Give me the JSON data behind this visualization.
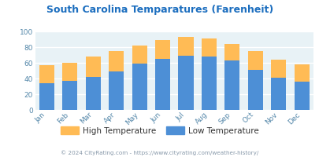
{
  "title": "South Carolina Temparatures (Farenheit)",
  "months": [
    "Jan",
    "Feb",
    "Mar",
    "Apr",
    "May",
    "Jun",
    "Jul",
    "Aug",
    "Sep",
    "Oct",
    "Nov",
    "Dec"
  ],
  "low_temps": [
    34,
    37,
    42,
    49,
    59,
    65,
    69,
    68,
    63,
    51,
    41,
    36
  ],
  "high_temps_total": [
    57,
    60,
    68,
    75,
    82,
    89,
    93,
    91,
    84,
    75,
    64,
    58
  ],
  "low_color": "#4D8FD6",
  "high_color": "#FFBB55",
  "title_color": "#1C6EBF",
  "axis_bg": "#E8F2F6",
  "fig_bg": "#FFFFFF",
  "ylim": [
    0,
    100
  ],
  "yticks": [
    0,
    20,
    40,
    60,
    80,
    100
  ],
  "legend_labels": [
    "High Temperature",
    "Low Temperature"
  ],
  "footer": "© 2024 CityRating.com - https://www.cityrating.com/weather-history/",
  "footer_color": "#8899AA",
  "tick_color": "#5588AA",
  "grid_color": "#FFFFFF"
}
